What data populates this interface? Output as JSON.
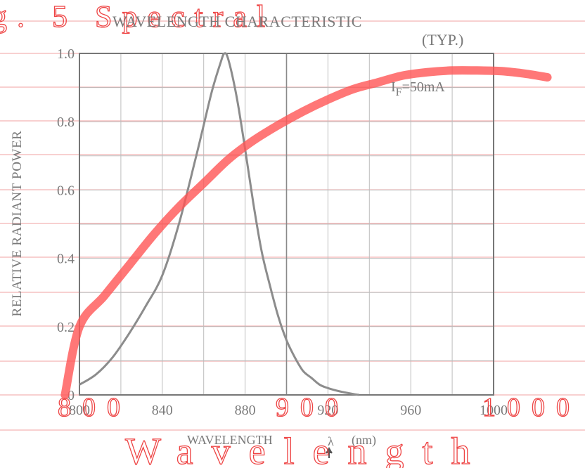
{
  "chart_data": {
    "type": "line",
    "title": "WAVELENGTH CHARACTERISTIC",
    "subtitle": "(TYP.)",
    "xlabel": "WAVELENGTH",
    "xlabel_symbol": "λ",
    "xlabel_unit": "(nm)",
    "ylabel": "RELATIVE RADIANT POWER",
    "annotation": {
      "main": "I",
      "sub": "F",
      "rest": "=50mA"
    },
    "xlim": [
      800,
      1000
    ],
    "ylim": [
      0,
      1.0
    ],
    "x_ticks": [
      800,
      840,
      880,
      920,
      960,
      1000
    ],
    "x_tick_labels": [
      "800",
      "840",
      "880",
      "920",
      "960",
      "1000"
    ],
    "y_ticks": [
      0,
      0.2,
      0.4,
      0.6,
      0.8,
      1.0
    ],
    "y_tick_labels": [
      "0",
      "0.2",
      "0.4",
      "0.6",
      "0.8",
      "1.0"
    ],
    "series": [
      {
        "name": "spectral response",
        "color": "#8c8c8c",
        "x": [
          800,
          808,
          816,
          824,
          832,
          840,
          848,
          856,
          860,
          864,
          868,
          870,
          872,
          876,
          880,
          884,
          888,
          892,
          896,
          900,
          904,
          908,
          912,
          916,
          920,
          926,
          932,
          935
        ],
        "y": [
          0.03,
          0.06,
          0.11,
          0.18,
          0.26,
          0.35,
          0.5,
          0.69,
          0.79,
          0.89,
          0.97,
          1.0,
          0.98,
          0.87,
          0.72,
          0.56,
          0.42,
          0.32,
          0.23,
          0.16,
          0.11,
          0.07,
          0.05,
          0.03,
          0.02,
          0.01,
          0.003,
          0.0
        ]
      }
    ]
  },
  "overlay": {
    "top_text": "g. 5 Spectral",
    "bottom_left_text": "800",
    "bottom_mid_text": "900",
    "bottom_right_text": "1000",
    "bottom_text": "Wavelength",
    "color": "#ee3333",
    "curve": {
      "name": "red response curve",
      "color": "#ff5555",
      "x": [
        793,
        800,
        812,
        824,
        836,
        848,
        860,
        872,
        884,
        896,
        908,
        920,
        932,
        944,
        956,
        968,
        980,
        992,
        1004,
        1016,
        1026
      ],
      "y": [
        0.0,
        0.2,
        0.29,
        0.38,
        0.47,
        0.55,
        0.62,
        0.69,
        0.745,
        0.79,
        0.83,
        0.865,
        0.895,
        0.915,
        0.935,
        0.945,
        0.95,
        0.95,
        0.948,
        0.94,
        0.93
      ]
    }
  }
}
